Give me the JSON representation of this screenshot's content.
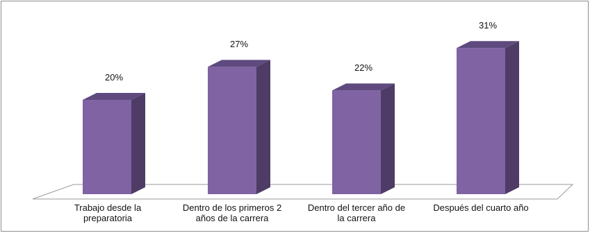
{
  "chart_data": {
    "type": "bar",
    "title": "",
    "xlabel": "",
    "ylabel": "",
    "ylim": [
      0,
      32
    ],
    "categories": [
      "Trabajo desde la preparatoria",
      "Dentro de los primeros 2 años de la carrera",
      "Dentro del tercer año de la carrera",
      "Después del cuarto año"
    ],
    "values": [
      20,
      27,
      22,
      31
    ],
    "value_labels": [
      "20%",
      "27%",
      "22%",
      "31%"
    ],
    "grid": false,
    "legend": "none",
    "colors": {
      "front": "#7f63a3",
      "side": "#4e3c66",
      "top": "#5f4a7f",
      "floor_stroke": "#9a9a9a"
    }
  }
}
